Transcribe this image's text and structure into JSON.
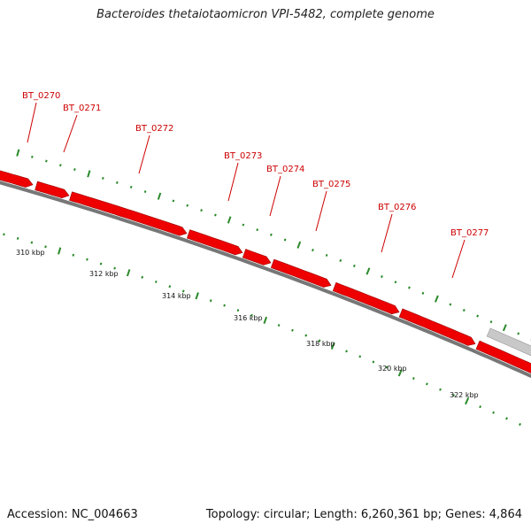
{
  "title": "Bacteroides thetaiotaomicron VPI-5482, complete genome",
  "accession_text": "Accession: NC_004663",
  "summary_text": "Topology: circular; Length: 6,260,361 bp; Genes: 4,864",
  "colors": {
    "gene_forward": "#ee0000",
    "gene_other": "#c8c8c8",
    "backbone": "#777777",
    "tick": "#2a8a2a",
    "label": "#cc0000"
  },
  "genes": [
    {
      "id": "BT_0270",
      "label": "BT_0270"
    },
    {
      "id": "BT_0271",
      "label": "BT_0271"
    },
    {
      "id": "BT_0272",
      "label": "BT_0272"
    },
    {
      "id": "BT_0273",
      "label": "BT_0273"
    },
    {
      "id": "BT_0274",
      "label": "BT_0274"
    },
    {
      "id": "BT_0275",
      "label": "BT_0275"
    },
    {
      "id": "BT_0276",
      "label": "BT_0276"
    },
    {
      "id": "BT_0277",
      "label": "BT_0277"
    }
  ],
  "scale_labels": [
    "310 kbp",
    "312 kbp",
    "314 kbp",
    "316 kbp",
    "318 kbp",
    "320 kbp",
    "322 kbp"
  ]
}
